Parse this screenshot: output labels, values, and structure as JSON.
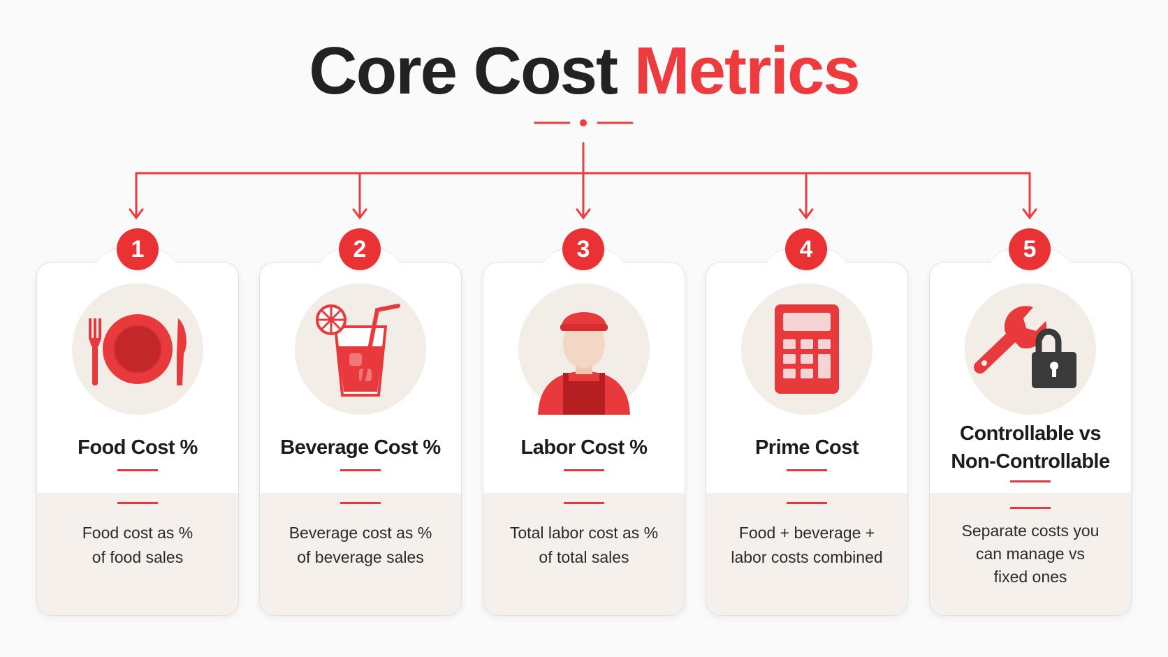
{
  "title": {
    "main": "Core Cost",
    "accent": "Metrics"
  },
  "colors": {
    "accent": "#ee3b3e",
    "dark": "#222222",
    "card_bottom": "#f5f0eb"
  },
  "cards": [
    {
      "number": "1",
      "icon": "plate-fork-knife-icon",
      "heading": "Food Cost %",
      "desc_line1": "Food cost as %",
      "desc_line2": "of food sales"
    },
    {
      "number": "2",
      "icon": "drink-glass-icon",
      "heading": "Beverage Cost %",
      "desc_line1": "Beverage cost as %",
      "desc_line2": "of beverage sales"
    },
    {
      "number": "3",
      "icon": "worker-icon",
      "heading": "Labor Cost %",
      "desc_line1": "Total labor cost as %",
      "desc_line2": "of total sales"
    },
    {
      "number": "4",
      "icon": "calculator-icon",
      "heading": "Prime Cost",
      "desc_line1": "Food + beverage +",
      "desc_line2": "labor costs combined"
    },
    {
      "number": "5",
      "icon": "wrench-lock-icon",
      "heading_line1": "Controllable vs",
      "heading_line2": "Non-Controllable",
      "desc_line1": "Separate costs you",
      "desc_line2": "can manage vs",
      "desc_line3": "fixed ones"
    }
  ]
}
